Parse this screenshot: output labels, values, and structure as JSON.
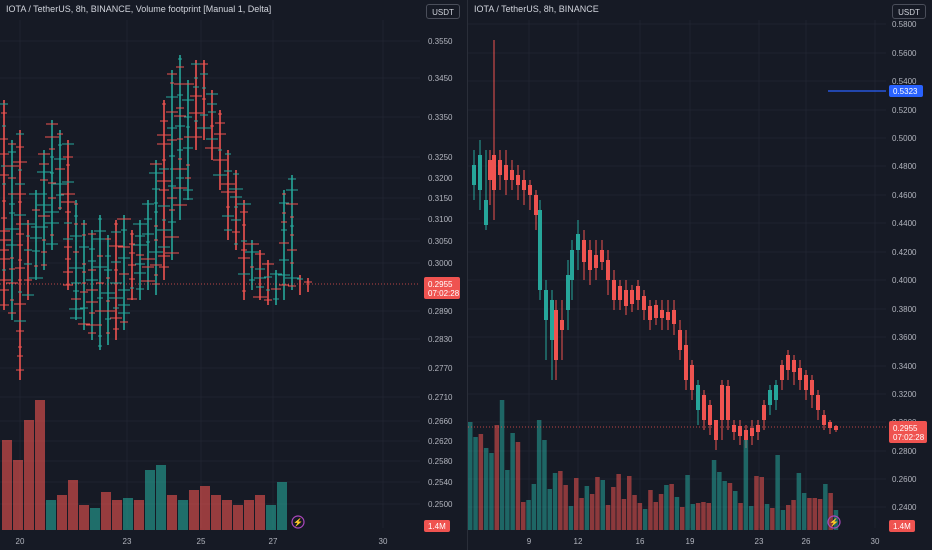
{
  "left_chart": {
    "title": "IOTA / TetherUS, 8h, BINANCE, Volume footprint [Manual 1, Delta]",
    "unit_button": "USDT",
    "price_ticks": [
      "0.3550",
      "0.3450",
      "0.3350",
      "0.3250",
      "0.3200",
      "0.3150",
      "0.3100",
      "0.3050",
      "0.3000",
      "0.2890",
      "0.2830",
      "0.2770",
      "0.2710",
      "0.2660",
      "0.2620",
      "0.2580",
      "0.2540",
      "0.2500"
    ],
    "x_labels": [
      "20",
      "23",
      "25",
      "27",
      "30"
    ],
    "price_badge": "0.2955",
    "countdown": "07:02:28",
    "volume_badge": "1.4M"
  },
  "right_chart": {
    "title": "IOTA / TetherUS, 8h, BINANCE",
    "unit_button": "USDT",
    "price_ticks": [
      "0.5800",
      "0.5600",
      "0.5400",
      "0.5200",
      "0.5000",
      "0.4800",
      "0.4600",
      "0.4400",
      "0.4200",
      "0.4000",
      "0.3800",
      "0.3600",
      "0.3400",
      "0.3200",
      "0.3000",
      "0.2800",
      "0.2600",
      "0.2400"
    ],
    "x_labels": [
      "9",
      "12",
      "16",
      "19",
      "23",
      "26",
      "30"
    ],
    "level_badge": "0.5323",
    "price_badge": "0.2955",
    "countdown": "07:02:28",
    "volume_badge": "1.4M"
  },
  "colors": {
    "up": "#26a69a",
    "down": "#ef5350",
    "level": "#2962ff",
    "bg": "#161a25"
  }
}
